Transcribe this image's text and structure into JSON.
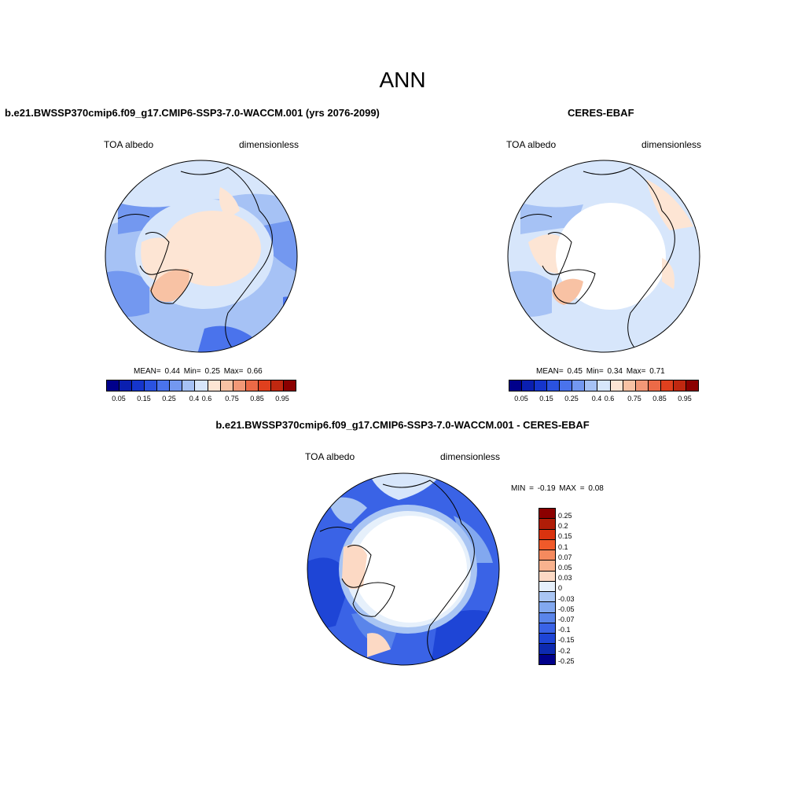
{
  "title": "ANN",
  "panels": {
    "model": {
      "title": "b.e21.BWSSP370cmip6.f09_g17.CMIP6-SSP3-7.0-WACCM.001 (yrs 2076-2099)",
      "variable": "TOA albedo",
      "units": "dimensionless",
      "stats": "MEAN=  0.44  Min=  0.25  Max=  0.66"
    },
    "obs": {
      "title": "CERES-EBAF",
      "variable": "TOA albedo",
      "units": "dimensionless",
      "stats": "MEAN=  0.45  Min=  0.34  Max=  0.71"
    },
    "diff": {
      "title": "b.e21.BWSSP370cmip6.f09_g17.CMIP6-SSP3-7.0-WACCM.001 - CERES-EBAF",
      "variable": "TOA albedo",
      "units": "dimensionless",
      "stats": "MIN =  -0.19 MAX =   0.08"
    }
  },
  "colorbar_top": {
    "colors": [
      "#00008b",
      "#0a1fb0",
      "#1535cc",
      "#2a52e0",
      "#4a73ec",
      "#7398f0",
      "#a6c2f5",
      "#d7e6fb",
      "#fde5d4",
      "#f8c2a4",
      "#f29877",
      "#ec6a47",
      "#e0401e",
      "#c02810",
      "#8b0000"
    ],
    "tick_labels": [
      "0.05",
      "0.15",
      "0.25",
      "0.4",
      "0.6",
      "0.75",
      "0.85",
      "0.95"
    ]
  },
  "colorbar_diff": {
    "colors": [
      "#8b0000",
      "#b01d08",
      "#d9330f",
      "#f05a2a",
      "#f58a5e",
      "#f8b28e",
      "#fcd9c4",
      "#e6f0fb",
      "#a9c5f3",
      "#82a8ef",
      "#5a85ea",
      "#3a63e6",
      "#1e45d6",
      "#0d2ab0",
      "#00008b"
    ],
    "labels": [
      "0.25",
      "0.2",
      "0.15",
      "0.1",
      "0.07",
      "0.05",
      "0.03",
      "0",
      "-0.03",
      "-0.05",
      "-0.07",
      "-0.1",
      "-0.15",
      "-0.2",
      "-0.25"
    ]
  },
  "colors": {
    "ocean_light": "#d7e6fb",
    "ocean_mid": "#a6c2f5",
    "land_peach": "#fde5d4",
    "land_salmon": "#f8c2a4",
    "blue_mid": "#7398f0",
    "blue_strong": "#2a52e0",
    "no_data": "#ffffff"
  }
}
